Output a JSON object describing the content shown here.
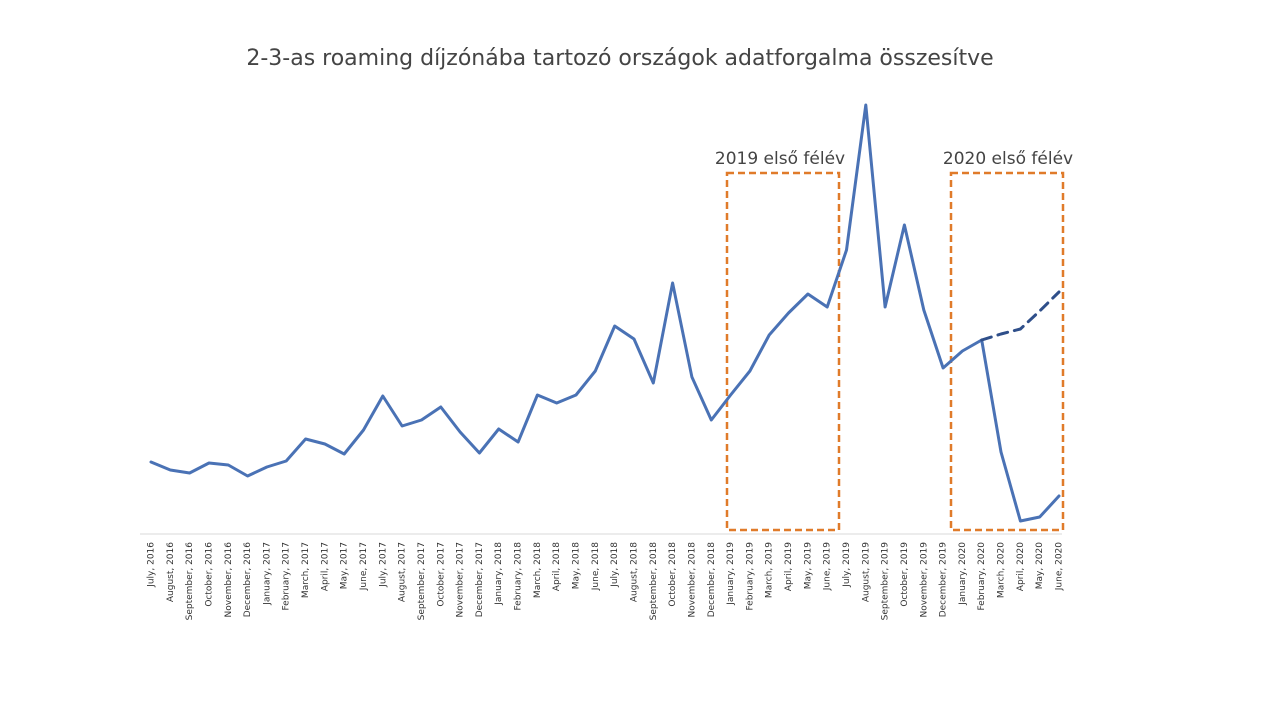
{
  "chart_data": {
    "type": "line",
    "title": "2-3-as roaming díjzónába tartozó országok adatforgalma összesítve",
    "annotations": [
      "2019 első félév",
      "2020 első félév"
    ],
    "categories": [
      "July, 2016",
      "August, 2016",
      "September, 2016",
      "October, 2016",
      "November, 2016",
      "December, 2016",
      "January, 2017",
      "February, 2017",
      "March, 2017",
      "April, 2017",
      "May, 2017",
      "June, 2017",
      "July, 2017",
      "August, 2017",
      "September, 2017",
      "October, 2017",
      "November, 2017",
      "December, 2017",
      "January, 2018",
      "February, 2018",
      "March, 2018",
      "April, 2018",
      "May, 2018",
      "June, 2018",
      "July, 2018",
      "August, 2018",
      "September, 2018",
      "October, 2018",
      "November, 2018",
      "December, 2018",
      "January, 2019",
      "February, 2019",
      "March, 2019",
      "April, 2019",
      "May, 2019",
      "June, 2019",
      "July, 2019",
      "August, 2019",
      "September, 2019",
      "October, 2019",
      "November, 2019",
      "December, 2019",
      "January, 2020",
      "February, 2020",
      "March, 2020",
      "April, 2020",
      "May, 2020",
      "June, 2020"
    ],
    "series": [
      {
        "color": "#4a72b5",
        "dashed": false,
        "values": [
          72,
          64,
          61,
          71,
          69,
          58,
          67,
          73,
          95,
          90,
          80,
          104,
          138,
          108,
          114,
          127,
          102,
          81,
          105,
          92,
          139,
          131,
          139,
          163,
          208,
          195,
          151,
          251,
          157,
          114,
          139,
          163,
          199,
          221,
          240,
          227,
          284,
          429,
          227,
          309,
          224,
          166,
          183,
          194,
          82,
          13,
          17,
          38
        ]
      },
      {
        "color": "#2f4f8a",
        "dashed": true,
        "values": [
          null,
          null,
          null,
          null,
          null,
          null,
          null,
          null,
          null,
          null,
          null,
          null,
          null,
          null,
          null,
          null,
          null,
          null,
          null,
          null,
          null,
          null,
          null,
          null,
          null,
          null,
          null,
          null,
          null,
          null,
          null,
          null,
          null,
          null,
          null,
          null,
          null,
          null,
          null,
          null,
          null,
          null,
          null,
          194,
          200,
          205,
          223,
          242
        ]
      }
    ],
    "ylim": [
      0,
      430
    ]
  }
}
